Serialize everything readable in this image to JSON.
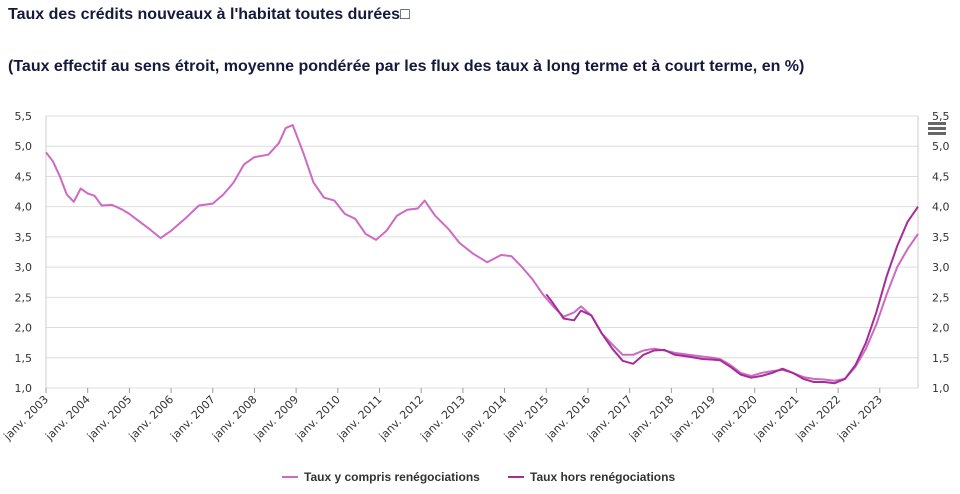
{
  "title": "Taux des crédits nouveaux à l'habitat toutes durées□",
  "subtitle": "(Taux effectif au sens étroit, moyenne pondérée par les flux des taux à long terme et à court terme, en %)",
  "menu_icon": "hamburger-menu-icon",
  "colors": {
    "series1": "#cc6ac4",
    "series2": "#a52d97",
    "grid": "#dddddd"
  },
  "chart_data": {
    "type": "line",
    "ylim": [
      1.0,
      5.5
    ],
    "yticks": [
      "1,0",
      "1,5",
      "2,0",
      "2,5",
      "3,0",
      "3,5",
      "4,0",
      "4,5",
      "5,0",
      "5,5"
    ],
    "ytick_values": [
      1.0,
      1.5,
      2.0,
      2.5,
      3.0,
      3.5,
      4.0,
      4.5,
      5.0,
      5.5
    ],
    "xlim": [
      "2003-01",
      "2023-12"
    ],
    "xticks": [
      "janv. 2003",
      "janv. 2004",
      "janv. 2005",
      "janv. 2006",
      "janv. 2007",
      "janv. 2008",
      "janv. 2009",
      "janv. 2010",
      "janv. 2011",
      "janv. 2012",
      "janv. 2013",
      "janv. 2014",
      "janv. 2015",
      "janv. 2016",
      "janv. 2017",
      "janv. 2018",
      "janv. 2019",
      "janv. 2020",
      "janv. 2021",
      "janv. 2022",
      "janv. 2023"
    ],
    "xtick_dates": [
      "2003-01",
      "2004-01",
      "2005-01",
      "2006-01",
      "2007-01",
      "2008-01",
      "2009-01",
      "2010-01",
      "2011-01",
      "2012-01",
      "2013-01",
      "2014-01",
      "2015-01",
      "2016-01",
      "2017-01",
      "2018-01",
      "2019-01",
      "2020-01",
      "2021-01",
      "2022-01",
      "2023-01"
    ],
    "grid": true,
    "legend_position": "bottom-center",
    "series": [
      {
        "name": "Taux y compris renégociations",
        "points": [
          [
            "2003-01",
            4.9
          ],
          [
            "2003-03",
            4.75
          ],
          [
            "2003-05",
            4.5
          ],
          [
            "2003-07",
            4.2
          ],
          [
            "2003-09",
            4.08
          ],
          [
            "2003-11",
            4.3
          ],
          [
            "2004-01",
            4.22
          ],
          [
            "2004-03",
            4.18
          ],
          [
            "2004-05",
            4.02
          ],
          [
            "2004-08",
            4.03
          ],
          [
            "2004-11",
            3.95
          ],
          [
            "2005-01",
            3.88
          ],
          [
            "2005-04",
            3.75
          ],
          [
            "2005-07",
            3.62
          ],
          [
            "2005-10",
            3.48
          ],
          [
            "2006-01",
            3.6
          ],
          [
            "2006-05",
            3.8
          ],
          [
            "2006-09",
            4.02
          ],
          [
            "2007-01",
            4.05
          ],
          [
            "2007-04",
            4.2
          ],
          [
            "2007-07",
            4.4
          ],
          [
            "2007-10",
            4.7
          ],
          [
            "2008-01",
            4.82
          ],
          [
            "2008-05",
            4.86
          ],
          [
            "2008-08",
            5.05
          ],
          [
            "2008-10",
            5.3
          ],
          [
            "2008-12",
            5.35
          ],
          [
            "2009-03",
            4.9
          ],
          [
            "2009-06",
            4.4
          ],
          [
            "2009-09",
            4.15
          ],
          [
            "2009-12",
            4.1
          ],
          [
            "2010-03",
            3.88
          ],
          [
            "2010-06",
            3.8
          ],
          [
            "2010-09",
            3.55
          ],
          [
            "2010-12",
            3.45
          ],
          [
            "2011-03",
            3.6
          ],
          [
            "2011-06",
            3.85
          ],
          [
            "2011-09",
            3.95
          ],
          [
            "2011-12",
            3.97
          ],
          [
            "2012-02",
            4.1
          ],
          [
            "2012-05",
            3.85
          ],
          [
            "2012-09",
            3.62
          ],
          [
            "2012-12",
            3.4
          ],
          [
            "2013-04",
            3.22
          ],
          [
            "2013-08",
            3.08
          ],
          [
            "2013-12",
            3.2
          ],
          [
            "2014-03",
            3.18
          ],
          [
            "2014-06",
            3.0
          ],
          [
            "2014-09",
            2.8
          ],
          [
            "2014-12",
            2.55
          ],
          [
            "2015-03",
            2.35
          ],
          [
            "2015-06",
            2.18
          ],
          [
            "2015-09",
            2.25
          ],
          [
            "2015-11",
            2.35
          ],
          [
            "2016-02",
            2.2
          ],
          [
            "2016-05",
            1.9
          ],
          [
            "2016-08",
            1.72
          ],
          [
            "2016-11",
            1.55
          ],
          [
            "2017-02",
            1.55
          ],
          [
            "2017-05",
            1.62
          ],
          [
            "2017-08",
            1.65
          ],
          [
            "2017-11",
            1.62
          ],
          [
            "2018-02",
            1.58
          ],
          [
            "2018-06",
            1.55
          ],
          [
            "2018-10",
            1.52
          ],
          [
            "2019-01",
            1.5
          ],
          [
            "2019-03",
            1.48
          ],
          [
            "2019-06",
            1.38
          ],
          [
            "2019-09",
            1.25
          ],
          [
            "2019-12",
            1.2
          ],
          [
            "2020-03",
            1.25
          ],
          [
            "2020-06",
            1.28
          ],
          [
            "2020-09",
            1.3
          ],
          [
            "2020-12",
            1.25
          ],
          [
            "2021-03",
            1.18
          ],
          [
            "2021-06",
            1.15
          ],
          [
            "2021-09",
            1.14
          ],
          [
            "2021-12",
            1.12
          ],
          [
            "2022-03",
            1.15
          ],
          [
            "2022-06",
            1.35
          ],
          [
            "2022-09",
            1.65
          ],
          [
            "2022-12",
            2.05
          ],
          [
            "2023-03",
            2.55
          ],
          [
            "2023-06",
            3.0
          ],
          [
            "2023-09",
            3.3
          ],
          [
            "2023-12",
            3.55
          ]
        ]
      },
      {
        "name": "Taux hors renégociations",
        "points": [
          [
            "2015-01",
            2.55
          ],
          [
            "2015-03",
            2.4
          ],
          [
            "2015-06",
            2.15
          ],
          [
            "2015-09",
            2.12
          ],
          [
            "2015-11",
            2.28
          ],
          [
            "2016-02",
            2.2
          ],
          [
            "2016-05",
            1.9
          ],
          [
            "2016-08",
            1.65
          ],
          [
            "2016-11",
            1.45
          ],
          [
            "2017-02",
            1.4
          ],
          [
            "2017-05",
            1.55
          ],
          [
            "2017-08",
            1.62
          ],
          [
            "2017-11",
            1.63
          ],
          [
            "2018-02",
            1.55
          ],
          [
            "2018-06",
            1.52
          ],
          [
            "2018-10",
            1.48
          ],
          [
            "2019-01",
            1.47
          ],
          [
            "2019-03",
            1.46
          ],
          [
            "2019-06",
            1.35
          ],
          [
            "2019-09",
            1.22
          ],
          [
            "2019-12",
            1.17
          ],
          [
            "2020-03",
            1.2
          ],
          [
            "2020-06",
            1.25
          ],
          [
            "2020-09",
            1.32
          ],
          [
            "2020-12",
            1.25
          ],
          [
            "2021-03",
            1.15
          ],
          [
            "2021-06",
            1.1
          ],
          [
            "2021-09",
            1.1
          ],
          [
            "2021-12",
            1.08
          ],
          [
            "2022-03",
            1.15
          ],
          [
            "2022-06",
            1.38
          ],
          [
            "2022-09",
            1.75
          ],
          [
            "2022-12",
            2.25
          ],
          [
            "2023-03",
            2.85
          ],
          [
            "2023-06",
            3.35
          ],
          [
            "2023-09",
            3.75
          ],
          [
            "2023-12",
            4.0
          ]
        ]
      }
    ]
  }
}
